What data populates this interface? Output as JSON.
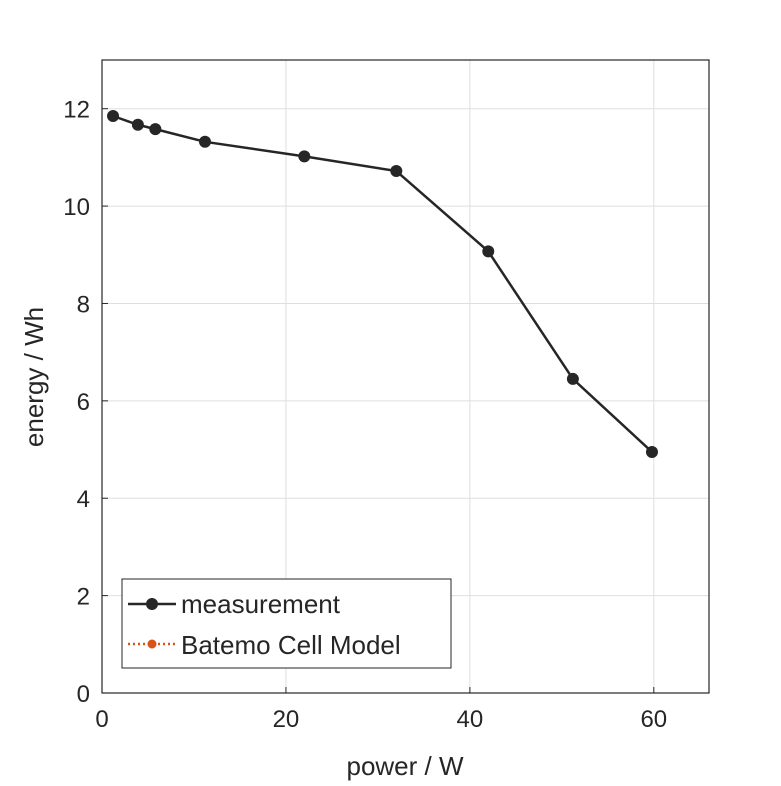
{
  "chart_data": {
    "type": "line",
    "title": "",
    "xlabel": "power / W",
    "ylabel": "energy / Wh",
    "xlim": [
      0,
      66
    ],
    "ylim": [
      0,
      13
    ],
    "xticks": [
      0,
      20,
      40,
      60
    ],
    "yticks": [
      0,
      2,
      4,
      6,
      8,
      10,
      12
    ],
    "grid": true,
    "legend_position": "bottom-left",
    "series": [
      {
        "name": "measurement",
        "color": "#262626",
        "line_style": "solid",
        "marker": "circle",
        "x": [
          1.2,
          3.9,
          5.8,
          11.2,
          22.0,
          32.0,
          42.0,
          51.2,
          59.8
        ],
        "y": [
          11.85,
          11.67,
          11.58,
          11.32,
          11.02,
          10.72,
          9.07,
          6.45,
          4.95
        ]
      },
      {
        "name": "Batemo Cell Model",
        "color": "#d95319",
        "line_style": "dotted",
        "marker": "circle",
        "x": [],
        "y": []
      }
    ]
  }
}
